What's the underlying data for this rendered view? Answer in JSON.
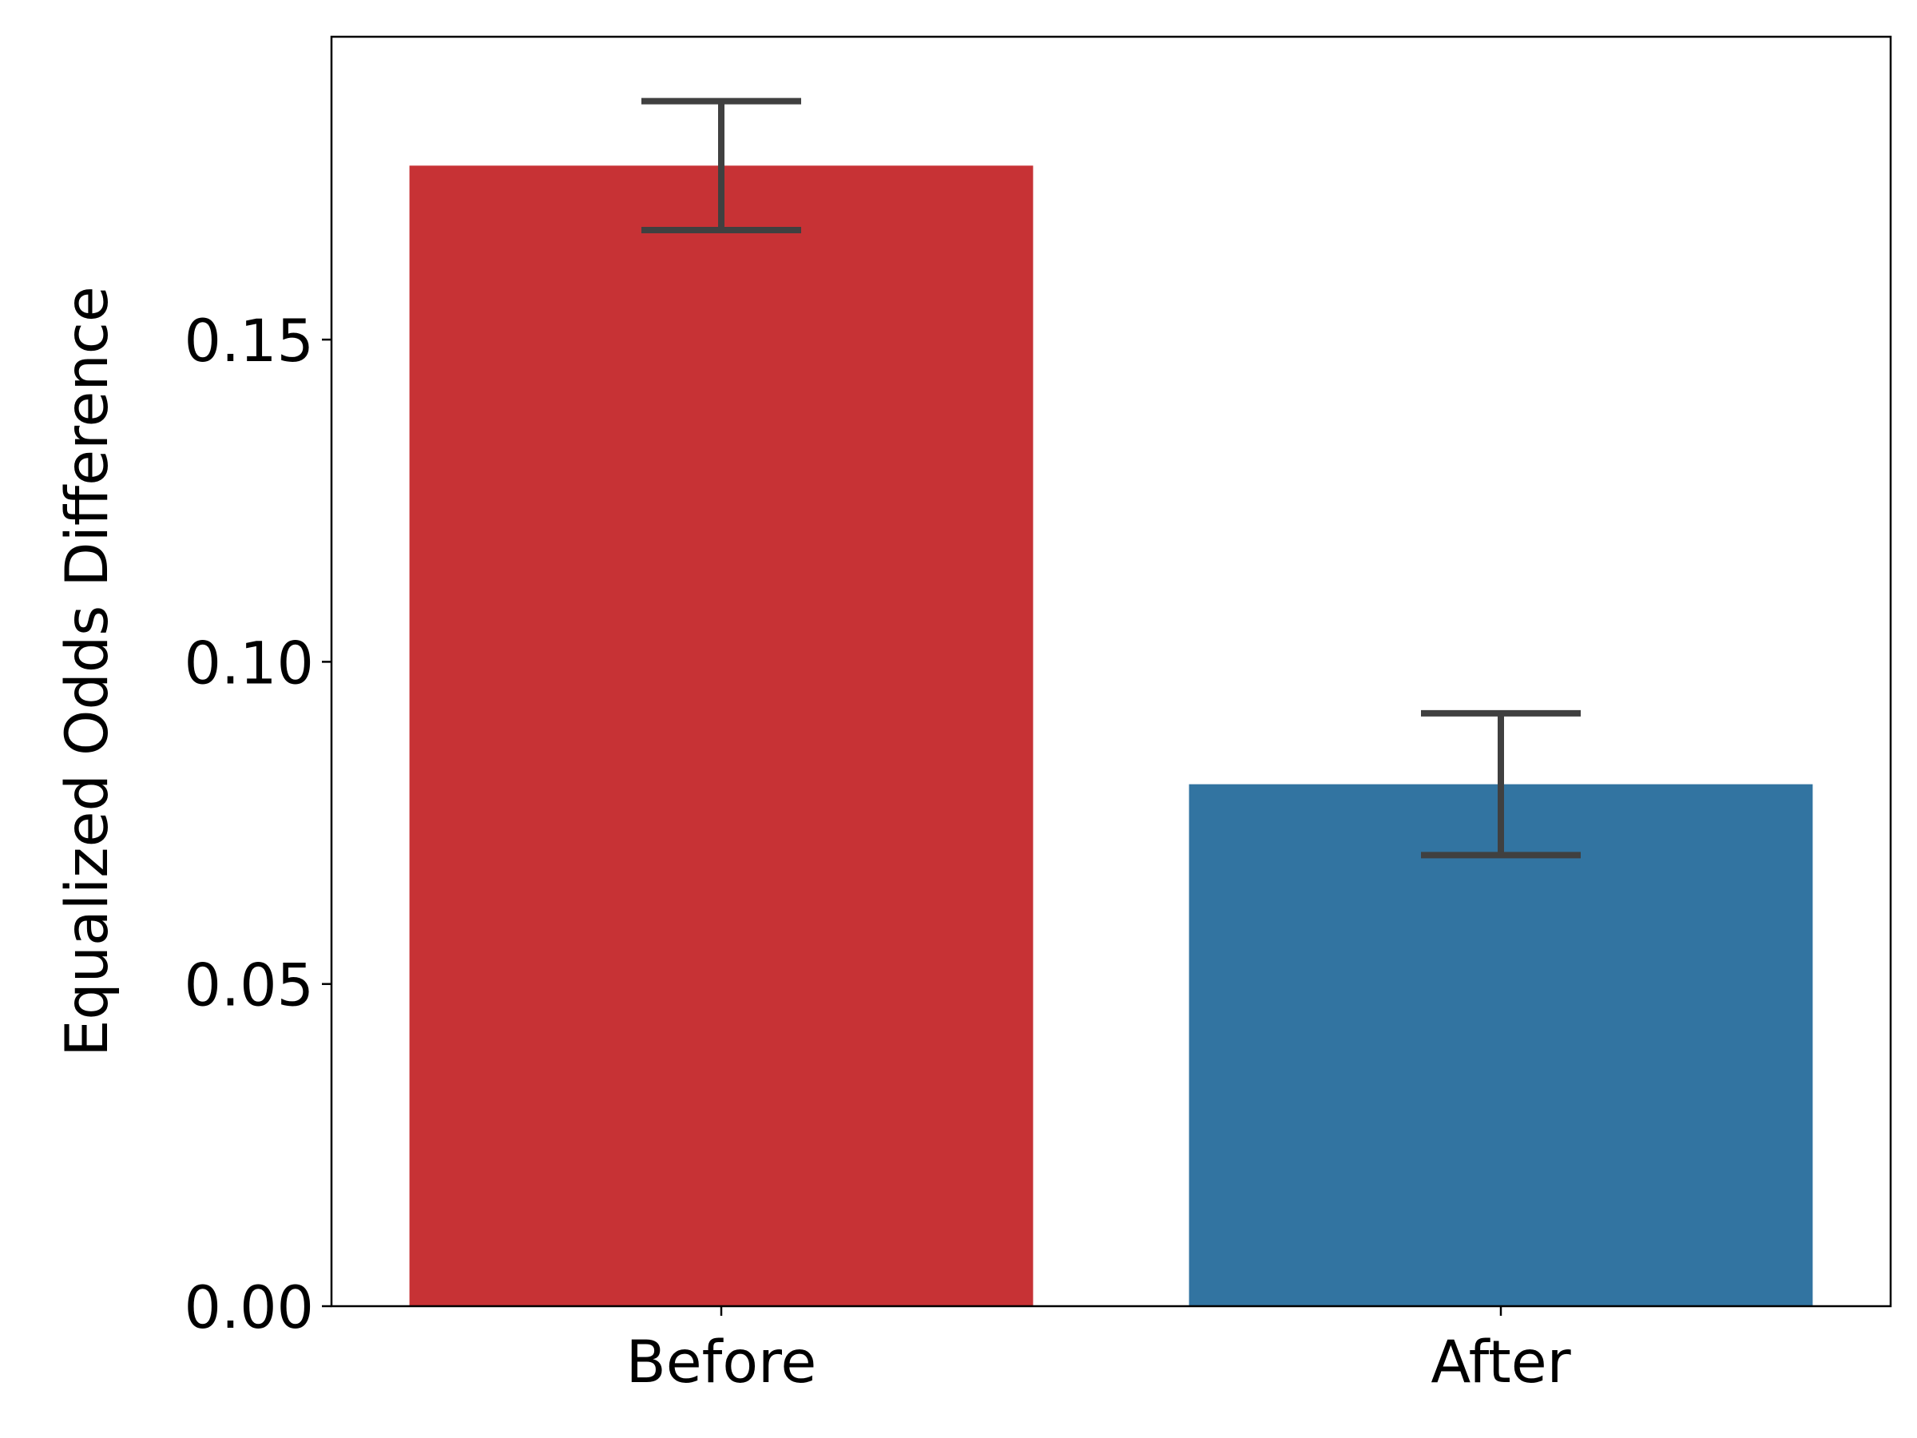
{
  "chart_data": {
    "type": "bar",
    "title": "",
    "xlabel": "",
    "ylabel": "Equalized Odds Difference",
    "categories": [
      "Before",
      "After"
    ],
    "values": [
      0.177,
      0.081
    ],
    "error_low": [
      0.167,
      0.07
    ],
    "error_high": [
      0.187,
      0.092
    ],
    "colors": [
      "#c73235",
      "#3274a1"
    ],
    "error_color": "#404040",
    "ylim": [
      0,
      0.197
    ],
    "yticks": [
      0.0,
      0.05,
      0.1,
      0.15
    ],
    "ytick_labels": [
      "0.00",
      "0.05",
      "0.10",
      "0.15"
    ],
    "grid": false,
    "legend": "none"
  }
}
